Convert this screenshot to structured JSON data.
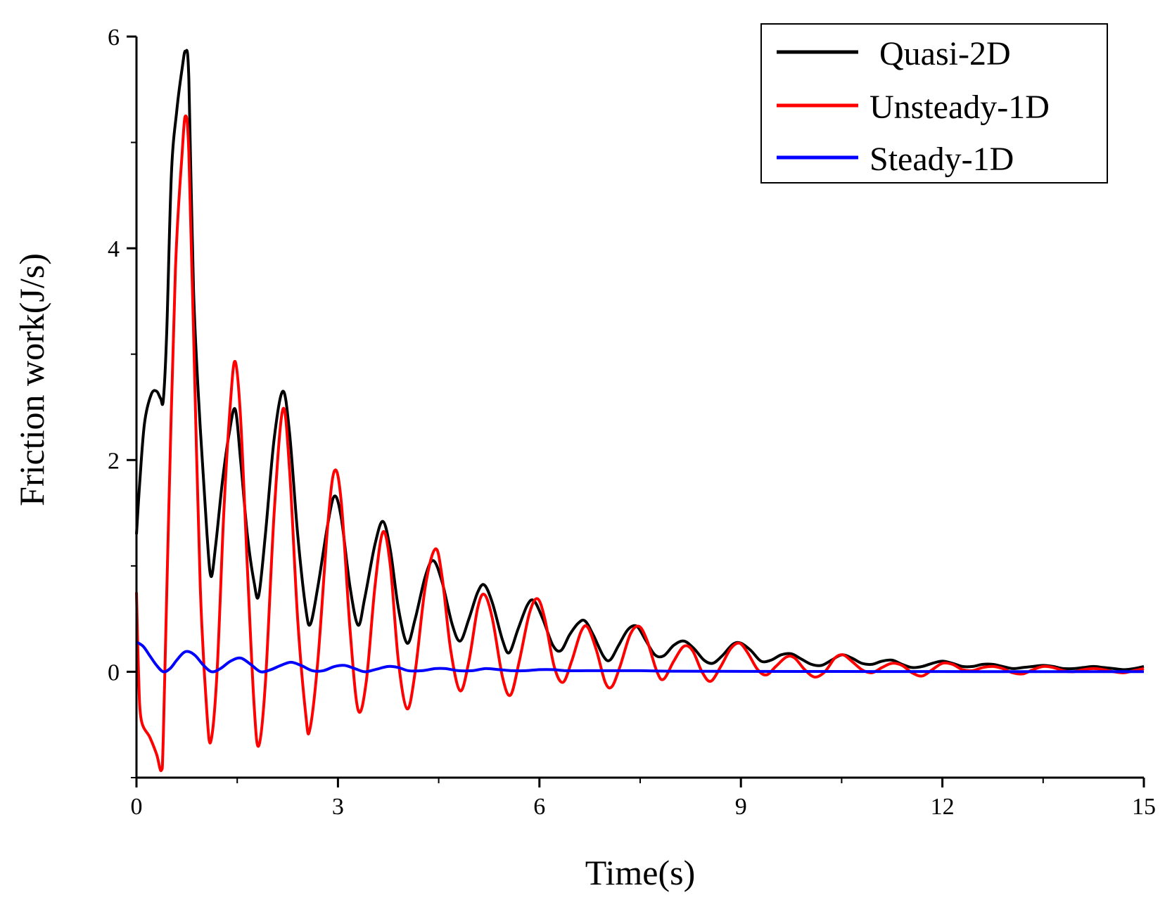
{
  "chart_data": {
    "type": "line",
    "title": "",
    "xlabel": "Time(s)",
    "ylabel": "Friction work(J/s)",
    "xlim": [
      0,
      15
    ],
    "ylim": [
      -1,
      6
    ],
    "xticks": [
      0,
      3,
      6,
      9,
      12,
      15
    ],
    "yticks": [
      0,
      2,
      4,
      6
    ],
    "xtick_labels": [
      "0",
      "3",
      "6",
      "9",
      "12",
      "15"
    ],
    "ytick_labels": [
      "0",
      "2",
      "4",
      "6"
    ],
    "grid": false,
    "legend_position": "top-right",
    "series": [
      {
        "name": "Quasi-2D",
        "color": "#000000",
        "points": [
          [
            0.0,
            1.3
          ],
          [
            0.05,
            1.8
          ],
          [
            0.12,
            2.35
          ],
          [
            0.22,
            2.62
          ],
          [
            0.3,
            2.65
          ],
          [
            0.36,
            2.58
          ],
          [
            0.4,
            2.57
          ],
          [
            0.45,
            3.2
          ],
          [
            0.52,
            4.7
          ],
          [
            0.6,
            5.3
          ],
          [
            0.68,
            5.7
          ],
          [
            0.73,
            5.86
          ],
          [
            0.78,
            5.6
          ],
          [
            0.85,
            3.6
          ],
          [
            0.95,
            2.3
          ],
          [
            1.05,
            1.3
          ],
          [
            1.11,
            0.9
          ],
          [
            1.18,
            1.2
          ],
          [
            1.28,
            1.8
          ],
          [
            1.38,
            2.25
          ],
          [
            1.47,
            2.48
          ],
          [
            1.55,
            2.0
          ],
          [
            1.65,
            1.3
          ],
          [
            1.75,
            0.85
          ],
          [
            1.82,
            0.72
          ],
          [
            1.92,
            1.3
          ],
          [
            2.05,
            2.2
          ],
          [
            2.18,
            2.65
          ],
          [
            2.28,
            2.25
          ],
          [
            2.4,
            1.3
          ],
          [
            2.52,
            0.6
          ],
          [
            2.59,
            0.45
          ],
          [
            2.7,
            0.8
          ],
          [
            2.85,
            1.4
          ],
          [
            2.95,
            1.66
          ],
          [
            3.05,
            1.45
          ],
          [
            3.18,
            0.8
          ],
          [
            3.3,
            0.44
          ],
          [
            3.4,
            0.7
          ],
          [
            3.55,
            1.2
          ],
          [
            3.67,
            1.42
          ],
          [
            3.78,
            1.15
          ],
          [
            3.9,
            0.6
          ],
          [
            4.03,
            0.27
          ],
          [
            4.15,
            0.5
          ],
          [
            4.3,
            0.9
          ],
          [
            4.42,
            1.05
          ],
          [
            4.55,
            0.85
          ],
          [
            4.7,
            0.45
          ],
          [
            4.82,
            0.29
          ],
          [
            4.95,
            0.5
          ],
          [
            5.08,
            0.75
          ],
          [
            5.18,
            0.82
          ],
          [
            5.3,
            0.65
          ],
          [
            5.45,
            0.3
          ],
          [
            5.55,
            0.18
          ],
          [
            5.68,
            0.4
          ],
          [
            5.82,
            0.63
          ],
          [
            5.92,
            0.67
          ],
          [
            6.05,
            0.5
          ],
          [
            6.2,
            0.25
          ],
          [
            6.32,
            0.2
          ],
          [
            6.45,
            0.35
          ],
          [
            6.58,
            0.46
          ],
          [
            6.68,
            0.48
          ],
          [
            6.8,
            0.35
          ],
          [
            6.95,
            0.15
          ],
          [
            7.05,
            0.11
          ],
          [
            7.18,
            0.25
          ],
          [
            7.32,
            0.4
          ],
          [
            7.45,
            0.43
          ],
          [
            7.58,
            0.3
          ],
          [
            7.72,
            0.16
          ],
          [
            7.85,
            0.15
          ],
          [
            8.0,
            0.25
          ],
          [
            8.15,
            0.29
          ],
          [
            8.3,
            0.22
          ],
          [
            8.45,
            0.11
          ],
          [
            8.58,
            0.08
          ],
          [
            8.72,
            0.15
          ],
          [
            8.88,
            0.26
          ],
          [
            9.0,
            0.27
          ],
          [
            9.15,
            0.2
          ],
          [
            9.3,
            0.1
          ],
          [
            9.45,
            0.11
          ],
          [
            9.6,
            0.16
          ],
          [
            9.75,
            0.17
          ],
          [
            9.9,
            0.12
          ],
          [
            10.05,
            0.07
          ],
          [
            10.2,
            0.06
          ],
          [
            10.35,
            0.11
          ],
          [
            10.5,
            0.16
          ],
          [
            10.65,
            0.13
          ],
          [
            10.8,
            0.08
          ],
          [
            10.95,
            0.07
          ],
          [
            11.1,
            0.1
          ],
          [
            11.25,
            0.11
          ],
          [
            11.4,
            0.07
          ],
          [
            11.55,
            0.04
          ],
          [
            11.7,
            0.05
          ],
          [
            11.85,
            0.08
          ],
          [
            12.0,
            0.1
          ],
          [
            12.15,
            0.08
          ],
          [
            12.3,
            0.05
          ],
          [
            12.45,
            0.05
          ],
          [
            12.6,
            0.07
          ],
          [
            12.75,
            0.07
          ],
          [
            12.9,
            0.05
          ],
          [
            13.05,
            0.03
          ],
          [
            13.2,
            0.04
          ],
          [
            13.35,
            0.05
          ],
          [
            13.5,
            0.06
          ],
          [
            13.65,
            0.05
          ],
          [
            13.8,
            0.03
          ],
          [
            13.95,
            0.03
          ],
          [
            14.1,
            0.04
          ],
          [
            14.25,
            0.05
          ],
          [
            14.4,
            0.04
          ],
          [
            14.55,
            0.03
          ],
          [
            14.7,
            0.02
          ],
          [
            14.85,
            0.03
          ],
          [
            15.0,
            0.05
          ]
        ]
      },
      {
        "name": "Unsteady-1D",
        "color": "#ff0000",
        "points": [
          [
            0.0,
            0.75
          ],
          [
            0.03,
            0.0
          ],
          [
            0.07,
            -0.45
          ],
          [
            0.2,
            -0.62
          ],
          [
            0.3,
            -0.78
          ],
          [
            0.37,
            -0.93
          ],
          [
            0.4,
            -0.6
          ],
          [
            0.48,
            1.5
          ],
          [
            0.58,
            3.8
          ],
          [
            0.68,
            4.9
          ],
          [
            0.73,
            5.25
          ],
          [
            0.78,
            4.9
          ],
          [
            0.85,
            3.2
          ],
          [
            0.95,
            0.8
          ],
          [
            1.05,
            -0.4
          ],
          [
            1.11,
            -0.65
          ],
          [
            1.2,
            0.0
          ],
          [
            1.3,
            1.5
          ],
          [
            1.4,
            2.55
          ],
          [
            1.47,
            2.93
          ],
          [
            1.55,
            2.4
          ],
          [
            1.65,
            1.0
          ],
          [
            1.75,
            -0.3
          ],
          [
            1.82,
            -0.7
          ],
          [
            1.92,
            -0.1
          ],
          [
            2.05,
            1.5
          ],
          [
            2.18,
            2.48
          ],
          [
            2.28,
            1.9
          ],
          [
            2.4,
            0.5
          ],
          [
            2.52,
            -0.4
          ],
          [
            2.58,
            -0.55
          ],
          [
            2.7,
            0.1
          ],
          [
            2.85,
            1.4
          ],
          [
            2.95,
            1.9
          ],
          [
            3.05,
            1.6
          ],
          [
            3.18,
            0.4
          ],
          [
            3.3,
            -0.36
          ],
          [
            3.42,
            -0.1
          ],
          [
            3.55,
            0.8
          ],
          [
            3.67,
            1.32
          ],
          [
            3.78,
            1.0
          ],
          [
            3.9,
            0.1
          ],
          [
            4.03,
            -0.35
          ],
          [
            4.15,
            0.0
          ],
          [
            4.3,
            0.8
          ],
          [
            4.45,
            1.16
          ],
          [
            4.55,
            0.9
          ],
          [
            4.68,
            0.2
          ],
          [
            4.82,
            -0.18
          ],
          [
            4.95,
            0.1
          ],
          [
            5.08,
            0.6
          ],
          [
            5.18,
            0.73
          ],
          [
            5.3,
            0.5
          ],
          [
            5.45,
            -0.05
          ],
          [
            5.57,
            -0.22
          ],
          [
            5.7,
            0.1
          ],
          [
            5.85,
            0.55
          ],
          [
            5.97,
            0.69
          ],
          [
            6.08,
            0.5
          ],
          [
            6.22,
            0.05
          ],
          [
            6.35,
            -0.1
          ],
          [
            6.48,
            0.1
          ],
          [
            6.62,
            0.38
          ],
          [
            6.72,
            0.42
          ],
          [
            6.85,
            0.2
          ],
          [
            6.98,
            -0.1
          ],
          [
            7.08,
            -0.14
          ],
          [
            7.2,
            0.05
          ],
          [
            7.35,
            0.35
          ],
          [
            7.48,
            0.43
          ],
          [
            7.6,
            0.3
          ],
          [
            7.75,
            0.0
          ],
          [
            7.85,
            -0.07
          ],
          [
            8.0,
            0.1
          ],
          [
            8.15,
            0.24
          ],
          [
            8.28,
            0.2
          ],
          [
            8.42,
            0.0
          ],
          [
            8.55,
            -0.09
          ],
          [
            8.7,
            0.05
          ],
          [
            8.85,
            0.22
          ],
          [
            8.98,
            0.27
          ],
          [
            9.1,
            0.18
          ],
          [
            9.25,
            0.02
          ],
          [
            9.38,
            -0.03
          ],
          [
            9.52,
            0.05
          ],
          [
            9.68,
            0.14
          ],
          [
            9.8,
            0.13
          ],
          [
            9.95,
            0.02
          ],
          [
            10.1,
            -0.05
          ],
          [
            10.25,
            0.0
          ],
          [
            10.4,
            0.13
          ],
          [
            10.52,
            0.16
          ],
          [
            10.65,
            0.1
          ],
          [
            10.8,
            0.02
          ],
          [
            10.95,
            -0.01
          ],
          [
            11.1,
            0.04
          ],
          [
            11.25,
            0.08
          ],
          [
            11.4,
            0.06
          ],
          [
            11.55,
            -0.01
          ],
          [
            11.7,
            -0.04
          ],
          [
            11.85,
            0.02
          ],
          [
            12.0,
            0.08
          ],
          [
            12.15,
            0.07
          ],
          [
            12.3,
            0.02
          ],
          [
            12.45,
            0.01
          ],
          [
            12.6,
            0.04
          ],
          [
            12.75,
            0.05
          ],
          [
            12.9,
            0.03
          ],
          [
            13.05,
            -0.01
          ],
          [
            13.2,
            -0.02
          ],
          [
            13.35,
            0.02
          ],
          [
            13.5,
            0.05
          ],
          [
            13.65,
            0.04
          ],
          [
            13.8,
            0.01
          ],
          [
            13.95,
            0.0
          ],
          [
            14.1,
            0.02
          ],
          [
            14.25,
            0.03
          ],
          [
            14.4,
            0.02
          ],
          [
            14.55,
            0.0
          ],
          [
            14.7,
            -0.01
          ],
          [
            14.85,
            0.01
          ],
          [
            15.0,
            0.03
          ]
        ]
      },
      {
        "name": "Steady-1D",
        "color": "#0000ff",
        "points": [
          [
            0.0,
            0.28
          ],
          [
            0.1,
            0.24
          ],
          [
            0.2,
            0.15
          ],
          [
            0.3,
            0.06
          ],
          [
            0.4,
            0.0
          ],
          [
            0.5,
            0.03
          ],
          [
            0.6,
            0.11
          ],
          [
            0.7,
            0.18
          ],
          [
            0.78,
            0.19
          ],
          [
            0.88,
            0.15
          ],
          [
            1.0,
            0.06
          ],
          [
            1.12,
            0.0
          ],
          [
            1.25,
            0.03
          ],
          [
            1.4,
            0.1
          ],
          [
            1.55,
            0.13
          ],
          [
            1.7,
            0.07
          ],
          [
            1.85,
            0.0
          ],
          [
            2.0,
            0.02
          ],
          [
            2.15,
            0.06
          ],
          [
            2.3,
            0.09
          ],
          [
            2.45,
            0.06
          ],
          [
            2.62,
            0.01
          ],
          [
            2.78,
            0.01
          ],
          [
            2.95,
            0.05
          ],
          [
            3.1,
            0.06
          ],
          [
            3.25,
            0.03
          ],
          [
            3.4,
            0.0
          ],
          [
            3.55,
            0.02
          ],
          [
            3.75,
            0.05
          ],
          [
            3.9,
            0.04
          ],
          [
            4.05,
            0.01
          ],
          [
            4.25,
            0.01
          ],
          [
            4.45,
            0.03
          ],
          [
            4.6,
            0.03
          ],
          [
            4.8,
            0.01
          ],
          [
            5.0,
            0.01
          ],
          [
            5.2,
            0.03
          ],
          [
            5.4,
            0.02
          ],
          [
            5.6,
            0.01
          ],
          [
            5.8,
            0.01
          ],
          [
            6.0,
            0.02
          ],
          [
            6.2,
            0.02
          ],
          [
            6.4,
            0.01
          ],
          [
            6.7,
            0.01
          ],
          [
            7.0,
            0.01
          ],
          [
            7.5,
            0.01
          ],
          [
            8.0,
            0.005
          ],
          [
            9.0,
            0.004
          ],
          [
            10.0,
            0.003
          ],
          [
            11.0,
            0.002
          ],
          [
            12.0,
            0.002
          ],
          [
            13.0,
            0.001
          ],
          [
            14.0,
            0.001
          ],
          [
            15.0,
            0.001
          ]
        ]
      }
    ]
  }
}
